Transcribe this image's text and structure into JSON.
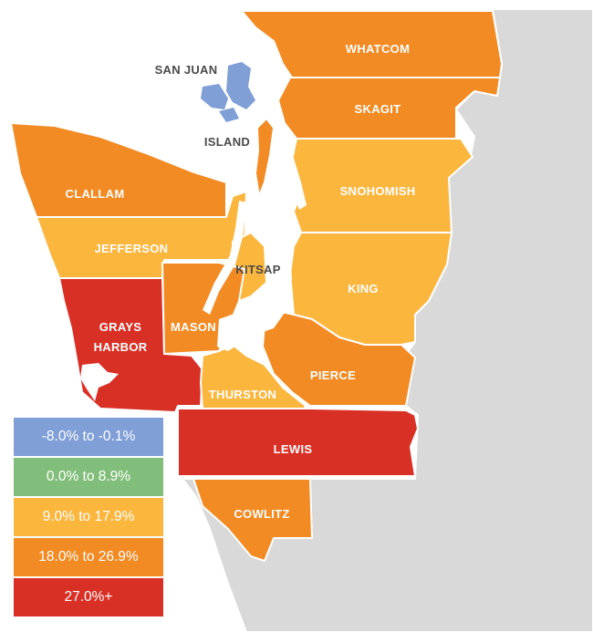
{
  "colors": {
    "background_land": "#d9d9d9",
    "scale_neg": "#7f9fd6",
    "scale_0_9": "#82be7b",
    "scale_9_18": "#fbb63e",
    "scale_18_27": "#f28b23",
    "scale_27_plus": "#d93026"
  },
  "counties": [
    {
      "name": "WHATCOM",
      "category": "18.0% to 26.9%"
    },
    {
      "name": "SKAGIT",
      "category": "18.0% to 26.9%"
    },
    {
      "name": "SAN JUAN",
      "category": "-8.0% to -0.1%"
    },
    {
      "name": "ISLAND",
      "category": "18.0% to 26.9%"
    },
    {
      "name": "CLALLAM",
      "category": "18.0% to 26.9%"
    },
    {
      "name": "SNOHOMISH",
      "category": "9.0% to 17.9%"
    },
    {
      "name": "JEFFERSON",
      "category": "9.0% to 17.9%"
    },
    {
      "name": "KITSAP",
      "category": "9.0% to 17.9%"
    },
    {
      "name": "KING",
      "category": "9.0% to 17.9%"
    },
    {
      "name": "GRAYS",
      "category": "27.0%+"
    },
    {
      "name": "HARBOR",
      "category": "27.0%+"
    },
    {
      "name": "MASON",
      "category": "18.0% to 26.9%"
    },
    {
      "name": "PIERCE",
      "category": "18.0% to 26.9%"
    },
    {
      "name": "THURSTON",
      "category": "9.0% to 17.9%"
    },
    {
      "name": "LEWIS",
      "category": "27.0%+"
    },
    {
      "name": "COWLITZ",
      "category": "18.0% to 26.9%"
    }
  ],
  "legend": [
    {
      "label": "-8.0% to -0.1%",
      "color": "#7f9fd6"
    },
    {
      "label": "0.0% to 8.9%",
      "color": "#82be7b"
    },
    {
      "label": "9.0% to 17.9%",
      "color": "#fbb63e"
    },
    {
      "label": "18.0% to 26.9%",
      "color": "#f28b23"
    },
    {
      "label": "27.0%+",
      "color": "#d93026"
    }
  ]
}
